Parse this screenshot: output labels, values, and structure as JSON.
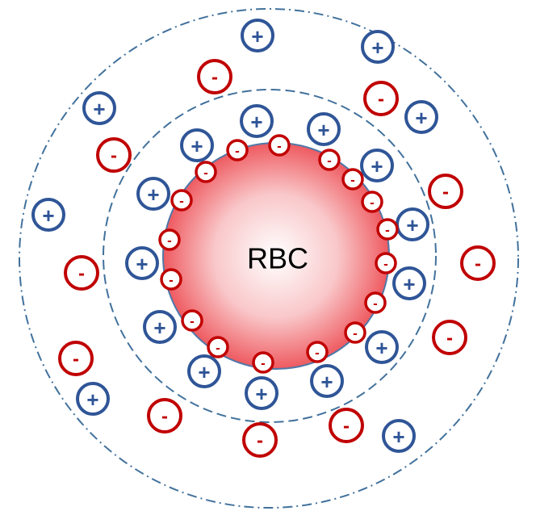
{
  "center_label": "RBC",
  "charges": {
    "positive": "+",
    "negative": "-"
  }
}
